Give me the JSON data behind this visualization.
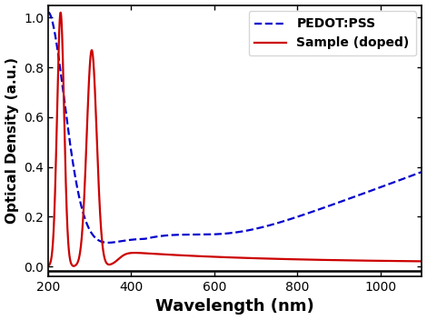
{
  "xlabel": "Wavelength (nm)",
  "ylabel": "Optical Density (a.u.)",
  "xlim": [
    200,
    1100
  ],
  "ylim": [
    -0.04,
    1.05
  ],
  "yticks": [
    0.0,
    0.2,
    0.4,
    0.6,
    0.8,
    1.0
  ],
  "xticks": [
    200,
    400,
    600,
    800,
    1000
  ],
  "pedot_color": "#0000CC",
  "sample_color": "#CC0000",
  "legend_labels": [
    "PEDOT:PSS",
    "Sample (doped)"
  ],
  "background_color": "#ffffff",
  "xlabel_fontsize": 13,
  "ylabel_fontsize": 11,
  "tick_labelsize": 10,
  "linewidth": 1.6
}
